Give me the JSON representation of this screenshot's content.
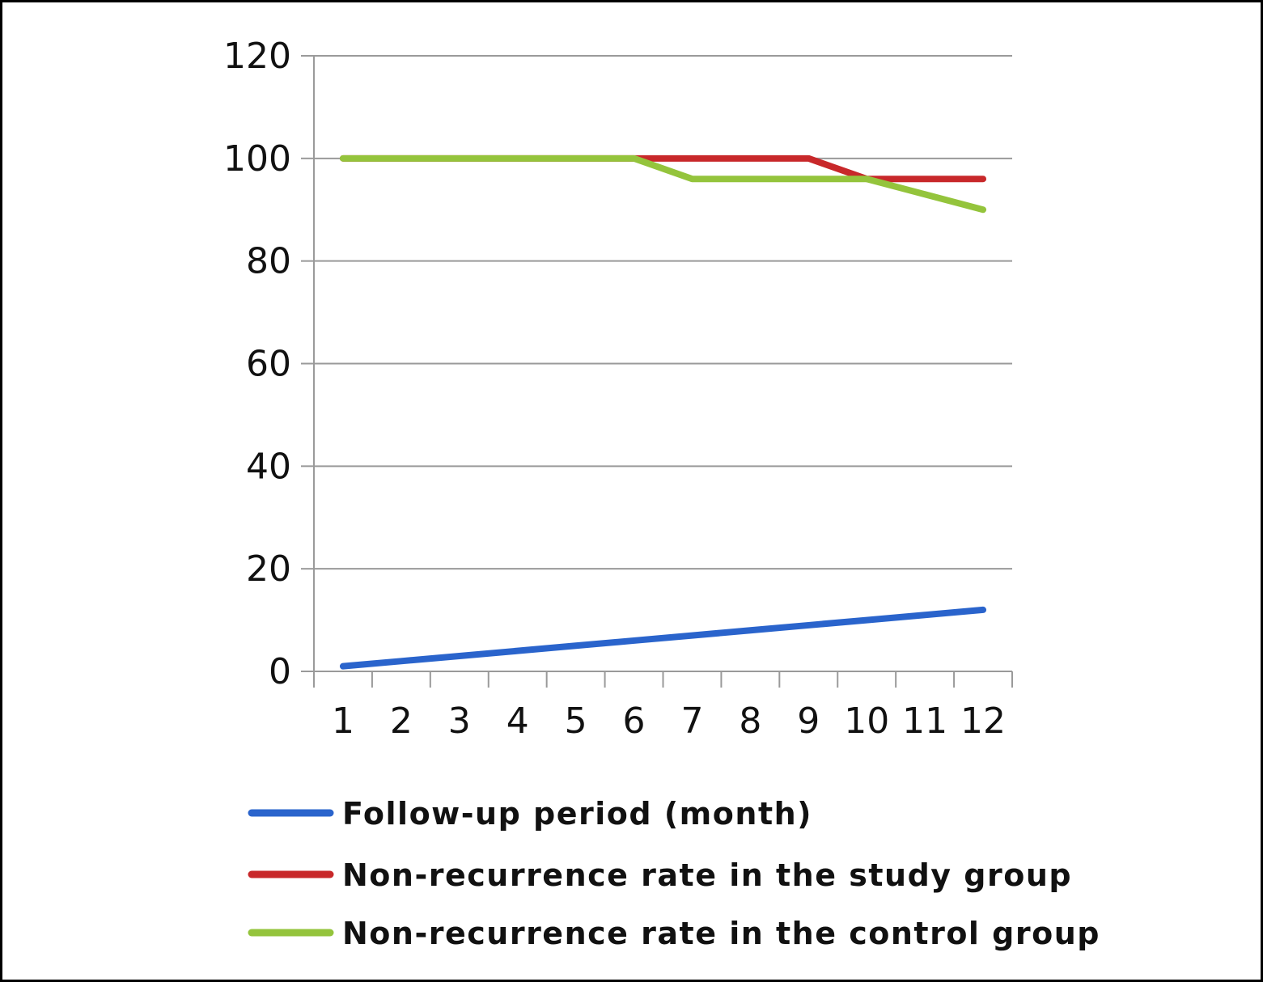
{
  "chart_data": {
    "type": "line",
    "title": "",
    "xlabel": "",
    "ylabel": "",
    "categories": [
      "1",
      "2",
      "3",
      "4",
      "5",
      "6",
      "7",
      "8",
      "9",
      "10",
      "11",
      "12"
    ],
    "ylim": [
      0,
      120
    ],
    "yticks": [
      0,
      20,
      40,
      60,
      80,
      100,
      120
    ],
    "grid": true,
    "legend_position": "bottom",
    "series": [
      {
        "name": "Follow-up period (month)",
        "color": "#2a64cc",
        "values": [
          1,
          2,
          3,
          4,
          5,
          6,
          7,
          8,
          9,
          10,
          11,
          12
        ]
      },
      {
        "name": "Non-recurrence rate in the study group",
        "color": "#c8282a",
        "values": [
          100,
          100,
          100,
          100,
          100,
          100,
          100,
          100,
          100,
          96,
          96,
          96
        ]
      },
      {
        "name": "Non-recurrence rate in the control group",
        "color": "#94c43c",
        "values": [
          100,
          100,
          100,
          100,
          100,
          100,
          96,
          96,
          96,
          96,
          93,
          90
        ]
      }
    ]
  }
}
